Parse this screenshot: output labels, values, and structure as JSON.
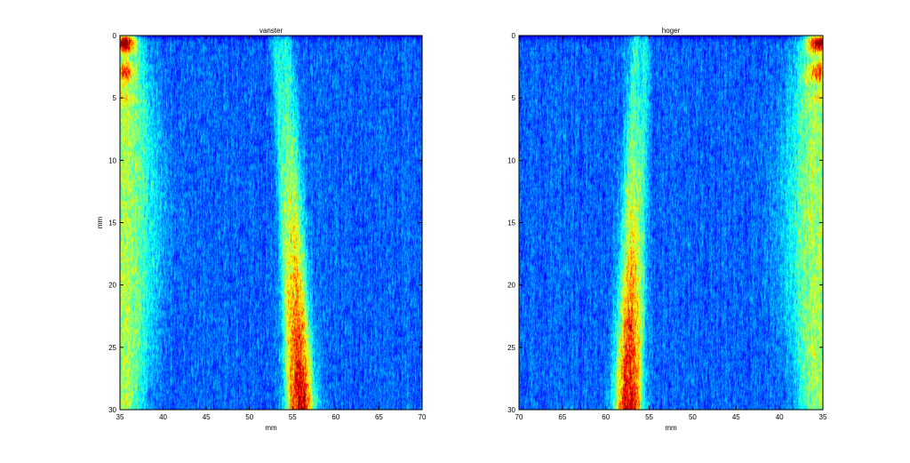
{
  "chart_data": [
    {
      "type": "heatmap",
      "title": "vanster",
      "xlabel": "mm",
      "ylabel": "mm",
      "xlim": [
        35,
        70
      ],
      "ylim": [
        0,
        30
      ],
      "x_reversed": false,
      "y_reversed": true,
      "xticks": [
        35,
        40,
        45,
        50,
        55,
        60,
        65,
        70
      ],
      "yticks": [
        0,
        5,
        10,
        15,
        20,
        25,
        30
      ],
      "colormap": "jet",
      "features": [
        {
          "kind": "vertical-band",
          "x_top": 54.2,
          "x_bottom": 56.0,
          "intensity": "high"
        },
        {
          "kind": "edge-band",
          "x": 35.5,
          "side": "left"
        }
      ]
    },
    {
      "type": "heatmap",
      "title": "hoger",
      "xlabel": "mm",
      "ylabel": "",
      "xlim": [
        70,
        35
      ],
      "ylim": [
        0,
        30
      ],
      "x_reversed": true,
      "y_reversed": true,
      "xticks": [
        70,
        65,
        60,
        55,
        50,
        45,
        40,
        35
      ],
      "yticks": [
        0,
        5,
        10,
        15,
        20,
        25,
        30
      ],
      "colormap": "jet",
      "features": [
        {
          "kind": "vertical-band",
          "x_top": 56.5,
          "x_bottom": 57.5,
          "intensity": "high"
        },
        {
          "kind": "edge-band",
          "x": 35.5,
          "side": "right"
        }
      ]
    }
  ],
  "colors": {
    "background": "#ffffff",
    "axis": "#000000",
    "field": "#1f48d8"
  }
}
